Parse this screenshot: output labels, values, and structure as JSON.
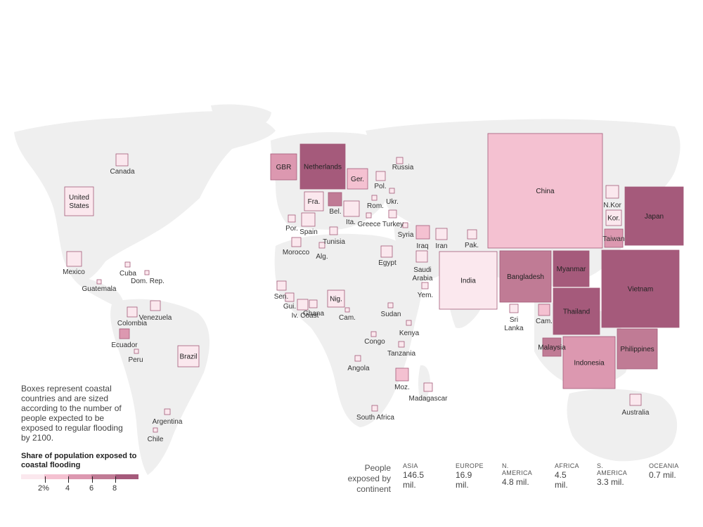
{
  "colors": {
    "land": "#efefef",
    "scale": [
      "#fbe8ee",
      "#f4c1d1",
      "#dc98b0",
      "#c07b95",
      "#a55a7b"
    ],
    "stroke": "#a45a78"
  },
  "note": "Boxes represent coastal countries and are sized according to the number of people expected to be exposed to regular flooding by 2100.",
  "legend": {
    "title": "Share of population exposed to coastal flooding",
    "ticks": [
      "2%",
      "4",
      "6",
      "8"
    ]
  },
  "continent_summary": {
    "title": "People exposed by continent",
    "items": [
      {
        "name": "ASIA",
        "value": "146.5 mil."
      },
      {
        "name": "EUROPE",
        "value": "16.9 mil."
      },
      {
        "name": "N. AMERICA",
        "value": "4.8 mil."
      },
      {
        "name": "AFRICA",
        "value": "4.5 mil."
      },
      {
        "name": "S. AMERICA",
        "value": "3.3 mil."
      },
      {
        "name": "OCEANIA",
        "value": "0.7 mil."
      }
    ]
  },
  "countries": [
    {
      "name": "Canada",
      "level": 1
    },
    {
      "name": "United States",
      "level": 1
    },
    {
      "name": "Mexico",
      "level": 1
    },
    {
      "name": "Cuba",
      "level": 1
    },
    {
      "name": "Dom. Rep.",
      "level": 1
    },
    {
      "name": "Guatemala",
      "level": 1
    },
    {
      "name": "Colombia",
      "level": 1
    },
    {
      "name": "Venezuela",
      "level": 1
    },
    {
      "name": "Ecuador",
      "level": 3
    },
    {
      "name": "Peru",
      "level": 1
    },
    {
      "name": "Brazil",
      "level": 1
    },
    {
      "name": "Argentina",
      "level": 1
    },
    {
      "name": "Chile",
      "level": 1
    },
    {
      "name": "GBR",
      "level": 3
    },
    {
      "name": "Netherlands",
      "level": 5
    },
    {
      "name": "Ger.",
      "level": 2
    },
    {
      "name": "Fra.",
      "level": 1
    },
    {
      "name": "Bel.",
      "level": 4
    },
    {
      "name": "Russia",
      "level": 1
    },
    {
      "name": "Pol.",
      "level": 1
    },
    {
      "name": "Ukr.",
      "level": 1
    },
    {
      "name": "Rom.",
      "level": 1
    },
    {
      "name": "Ita.",
      "level": 1
    },
    {
      "name": "Greece",
      "level": 1
    },
    {
      "name": "Turkey",
      "level": 1
    },
    {
      "name": "Por.",
      "level": 1
    },
    {
      "name": "Spain",
      "level": 1
    },
    {
      "name": "Tunisia",
      "level": 1
    },
    {
      "name": "Morocco",
      "level": 1
    },
    {
      "name": "Alg.",
      "level": 1
    },
    {
      "name": "Syria",
      "level": 1
    },
    {
      "name": "Iraq",
      "level": 2
    },
    {
      "name": "Iran",
      "level": 1
    },
    {
      "name": "Pak.",
      "level": 1
    },
    {
      "name": "Egypt",
      "level": 1
    },
    {
      "name": "Saudi Arabia",
      "level": 1
    },
    {
      "name": "Yem.",
      "level": 1
    },
    {
      "name": "Sen.",
      "level": 1
    },
    {
      "name": "Gui.",
      "level": 1
    },
    {
      "name": "Iv. Coast",
      "level": 1
    },
    {
      "name": "Ghana",
      "level": 1
    },
    {
      "name": "Nig.",
      "level": 1
    },
    {
      "name": "Cam.",
      "level": 1
    },
    {
      "name": "Sudan",
      "level": 1
    },
    {
      "name": "Kenya",
      "level": 1
    },
    {
      "name": "Congo",
      "level": 1
    },
    {
      "name": "Tanzania",
      "level": 1
    },
    {
      "name": "Angola",
      "level": 1
    },
    {
      "name": "Moz.",
      "level": 2
    },
    {
      "name": "Madagascar",
      "level": 1
    },
    {
      "name": "South Africa",
      "level": 1
    },
    {
      "name": "China",
      "level": 2
    },
    {
      "name": "N.Kor",
      "level": 1
    },
    {
      "name": "Kor.",
      "level": 1
    },
    {
      "name": "Taiwan",
      "level": 3
    },
    {
      "name": "Japan",
      "level": 5
    },
    {
      "name": "India",
      "level": 1
    },
    {
      "name": "Bangladesh",
      "level": 4
    },
    {
      "name": "Myanmar",
      "level": 5
    },
    {
      "name": "Vietnam",
      "level": 5
    },
    {
      "name": "Thailand",
      "level": 5
    },
    {
      "name": "Sri Lanka",
      "level": 1
    },
    {
      "name": "Cam.",
      "level": 2
    },
    {
      "name": "Malaysia",
      "level": 4
    },
    {
      "name": "Indonesia",
      "level": 3
    },
    {
      "name": "Philippines",
      "level": 4
    },
    {
      "name": "Australia",
      "level": 1
    }
  ]
}
